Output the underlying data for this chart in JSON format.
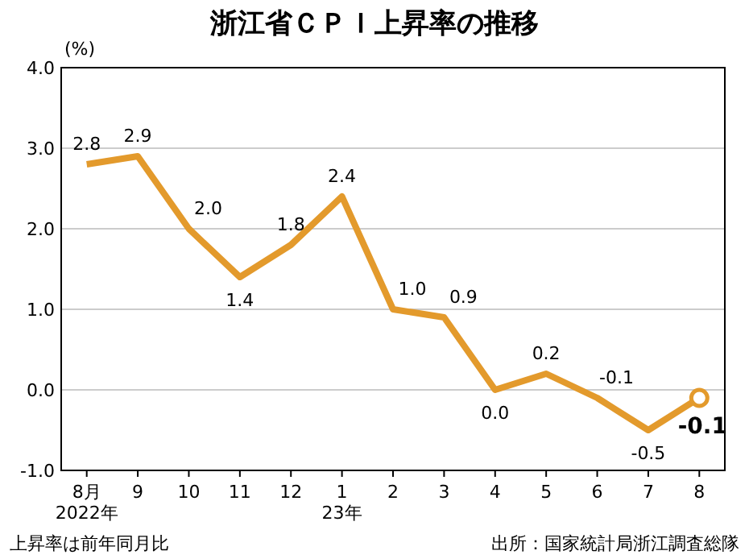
{
  "chart_data": {
    "type": "line",
    "title": "浙江省ＣＰＩ上昇率の推移",
    "ylabel": "(%)",
    "categories": [
      "8月\n2022年",
      "9",
      "10",
      "11",
      "12",
      "1\n23年",
      "2",
      "3",
      "4",
      "5",
      "6",
      "7",
      "8"
    ],
    "series": [
      {
        "color": "#e39a2c",
        "values": [
          2.8,
          2.9,
          2.0,
          1.4,
          1.8,
          2.4,
          1.0,
          0.9,
          0.0,
          0.2,
          -0.1,
          -0.5,
          -0.1
        ],
        "value_labels": [
          "2.8",
          "2.9",
          "2.0",
          "1.4",
          "1.8",
          "2.4",
          "1.0",
          "0.9",
          "0.0",
          "0.2",
          "-0.1",
          "-0.5",
          null
        ]
      },
      {
        "type": "scatter",
        "color": "#e39a2c",
        "x": [
          "8"
        ],
        "values": [
          -0.1
        ],
        "value_labels": [
          "-0.1"
        ]
      }
    ],
    "ylim": [
      -1,
      4
    ],
    "yticks": [
      {
        "value": -1,
        "label": "-1.0"
      },
      {
        "value": 0,
        "label": "0.0"
      },
      {
        "value": 1,
        "label": "1.0"
      },
      {
        "value": 2,
        "label": "2.0"
      },
      {
        "value": 3,
        "label": "3.0"
      },
      {
        "value": 4,
        "label": "4.0"
      }
    ],
    "grid": "y",
    "line_style": "solid",
    "annotations": [
      "上昇率は前年同月比",
      "出所：国家統計局浙江調査総隊"
    ]
  }
}
